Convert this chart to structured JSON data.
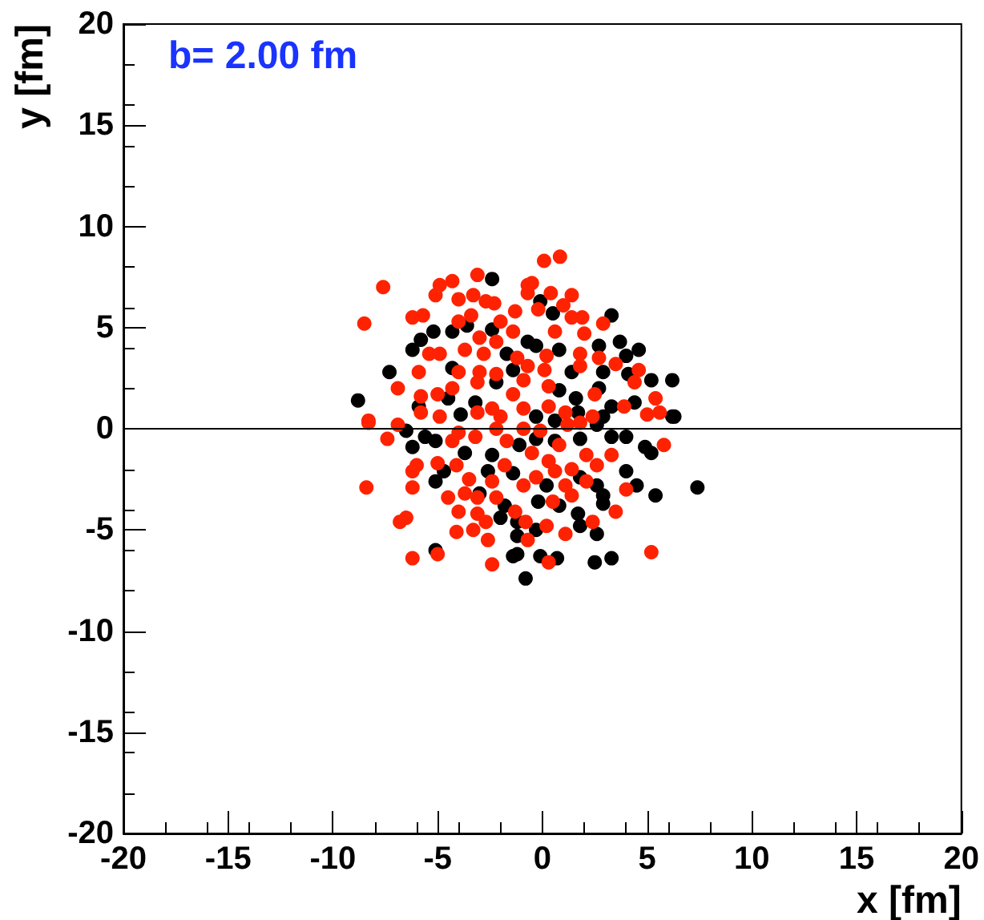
{
  "chart_data": {
    "type": "scatter",
    "title": "b= 2.00 fm",
    "xlabel": "x [fm]",
    "ylabel": "y [fm]",
    "xlim": [
      -20,
      20
    ],
    "ylim": [
      -20,
      20
    ],
    "xticks": [
      -20,
      -15,
      -10,
      -5,
      0,
      5,
      10,
      15,
      20
    ],
    "yticks": [
      -20,
      -15,
      -10,
      -5,
      0,
      5,
      10,
      15,
      20
    ],
    "grid": false,
    "marker": "circle",
    "ref_lines": [
      {
        "axis": "y",
        "value": 0,
        "color": "#000000"
      }
    ],
    "series": [
      {
        "color": "#000000",
        "x": [
          -2.4,
          -0.1,
          0.5,
          3.3,
          -5.8,
          -5.2,
          -6.2,
          -4.3,
          -3.6,
          -2.4,
          -0.7,
          -0.3,
          0.8,
          2.7,
          3.7,
          4.6,
          4.0,
          -7.3,
          -4.3,
          -1.7,
          1.4,
          2.9,
          4.1,
          5.2,
          6.2,
          -8.8,
          -2.2,
          -1.4,
          0.8,
          1.6,
          2.7,
          3.3,
          4.4,
          6.3,
          -4.5,
          -3.9,
          -3.2,
          -0.3,
          0.6,
          1.7,
          2.9,
          -5.9,
          -6.5,
          -6.2,
          -5.1,
          -5.6,
          -3.7,
          -2.4,
          -1.1,
          -0.3,
          0.6,
          1.8,
          2.6,
          3.3,
          4.0,
          4.9,
          5.2,
          6.2,
          -5.1,
          -4.7,
          -2.6,
          -1.4,
          0.2,
          1.8,
          2.6,
          2.9,
          4.0,
          4.5,
          5.4,
          7.4,
          -3.0,
          -1.8,
          -0.2,
          0.8,
          1.7,
          2.9,
          -2.0,
          -1.2,
          -0.3,
          1.8,
          2.6,
          -1.2,
          -5.1,
          -1.2,
          -1.4,
          -0.1,
          0.7,
          2.5,
          3.3,
          -0.8
        ],
        "values": [
          7.4,
          6.3,
          5.7,
          5.6,
          4.4,
          4.8,
          3.9,
          4.8,
          5.1,
          4.9,
          4.3,
          4.1,
          3.9,
          4.1,
          4.3,
          3.9,
          3.6,
          2.8,
          3.0,
          3.7,
          2.8,
          2.8,
          2.7,
          2.4,
          2.4,
          1.4,
          2.3,
          2.9,
          1.9,
          1.5,
          2.0,
          1.1,
          1.3,
          0.6,
          1.5,
          0.7,
          1.3,
          0.6,
          0.4,
          0.8,
          0.6,
          1.1,
          -0.1,
          -0.9,
          -0.6,
          -0.4,
          -1.2,
          -1.3,
          -0.8,
          -0.5,
          -0.6,
          -0.5,
          0.2,
          -0.4,
          -0.4,
          -0.9,
          -1.2,
          0.6,
          -2.6,
          -2.1,
          -2.1,
          -2.2,
          -2.8,
          -2.4,
          -2.8,
          -3.3,
          -2.1,
          -2.8,
          -3.3,
          -2.9,
          -3.2,
          -3.8,
          -3.6,
          -3.8,
          -4.2,
          -3.7,
          -4.4,
          -4.6,
          -5.0,
          -4.8,
          -5.2,
          -5.3,
          -6.0,
          -6.2,
          -6.3,
          -6.3,
          -6.4,
          -6.6,
          -6.4,
          -7.4
        ]
      },
      {
        "color": "#ff2200",
        "x": [
          0.84,
          0.08,
          -7.6,
          -8.5,
          -3.1,
          -4.3,
          -4.9,
          -0.7,
          -0.5,
          -5.1,
          -4.0,
          -3.3,
          -2.7,
          -2.3,
          -1.3,
          -0.7,
          0.4,
          1.4,
          1.0,
          -0.2,
          1.4,
          1.9,
          2.9,
          -6.2,
          -5.7,
          -4.0,
          -3.4,
          -2.0,
          -3.0,
          -2.2,
          -1.4,
          0.6,
          2.0,
          -5.4,
          -4.9,
          -3.7,
          -2.8,
          -1.2,
          0.2,
          1.8,
          2.7,
          3.5,
          -5.9,
          -4.0,
          -3.0,
          -2.2,
          -0.7,
          0.1,
          1.8,
          4.6,
          -6.9,
          -4.3,
          -3.1,
          -1.4,
          -0.9,
          0.3,
          2.5,
          4.4,
          -5.8,
          -5.0,
          3.9,
          5.4,
          5.0,
          5.6,
          -8.3,
          -5.8,
          -4.9,
          -3.1,
          -2.4,
          -2.0,
          -0.9,
          0.3,
          1.1,
          2.4,
          -8.3,
          -6.9,
          -7.4,
          -4.3,
          -4.0,
          -3.2,
          -2.2,
          -1.7,
          -0.9,
          -0.1,
          1.2,
          1.8,
          5.8,
          3.3,
          -0.5,
          0.3,
          0.8,
          2.1,
          2.6,
          -6.0,
          -6.2,
          -5.0,
          -4.1,
          -1.8,
          0.6,
          1.4,
          -8.4,
          -6.2,
          -3.5,
          -2.4,
          -0.9,
          -0.3,
          1.1,
          2.1,
          4.0,
          -3.7,
          -3.1,
          -2.2,
          0.5,
          1.4,
          -4.5,
          -6.5,
          -4.0,
          -3.1,
          -1.3,
          -0.8,
          3.5,
          2.4,
          -6.8,
          -4.1,
          -3.3,
          -2.7,
          -2.6,
          0.2,
          1.1,
          -0.7,
          -6.2,
          -5.0,
          -2.4,
          0.3,
          5.2
        ],
        "values": [
          8.5,
          8.3,
          7.0,
          5.2,
          7.6,
          7.3,
          7.1,
          7.1,
          7.2,
          6.6,
          6.4,
          6.6,
          6.3,
          6.2,
          5.8,
          6.7,
          6.7,
          6.6,
          6.1,
          5.9,
          5.5,
          5.5,
          5.2,
          5.5,
          5.6,
          5.3,
          5.6,
          5.3,
          4.5,
          4.3,
          4.8,
          4.8,
          4.7,
          3.7,
          3.7,
          3.9,
          3.7,
          3.5,
          3.6,
          3.7,
          3.5,
          3.2,
          2.8,
          2.8,
          2.8,
          2.7,
          3.1,
          2.9,
          3.1,
          2.9,
          2.0,
          2.0,
          2.3,
          1.7,
          2.4,
          2.1,
          1.7,
          2.3,
          1.6,
          1.7,
          1.1,
          1.5,
          0.7,
          0.8,
          0.4,
          0.8,
          0.6,
          0.8,
          1.0,
          0.6,
          1.0,
          1.1,
          0.8,
          0.6,
          0.3,
          0.2,
          -0.5,
          -0.6,
          -0.2,
          -0.4,
          0.0,
          -0.6,
          0.0,
          -0.1,
          0.2,
          0.3,
          -0.8,
          -1.3,
          -1.2,
          -1.6,
          -0.8,
          -1.3,
          -1.8,
          -1.8,
          -2.1,
          -1.7,
          -1.8,
          -1.8,
          -2.1,
          -2.0,
          -2.9,
          -2.9,
          -2.5,
          -2.6,
          -2.8,
          -2.4,
          -2.8,
          -2.6,
          -3.0,
          -3.2,
          -3.4,
          -3.4,
          -3.6,
          -3.3,
          -3.4,
          -4.4,
          -4.1,
          -4.2,
          -4.1,
          -4.6,
          -4.1,
          -4.6,
          -4.6,
          -5.1,
          -5.0,
          -4.6,
          -5.5,
          -4.8,
          -5.2,
          -5.5,
          -6.4,
          -6.2,
          -6.7,
          -6.6,
          -6.1
        ]
      }
    ]
  }
}
